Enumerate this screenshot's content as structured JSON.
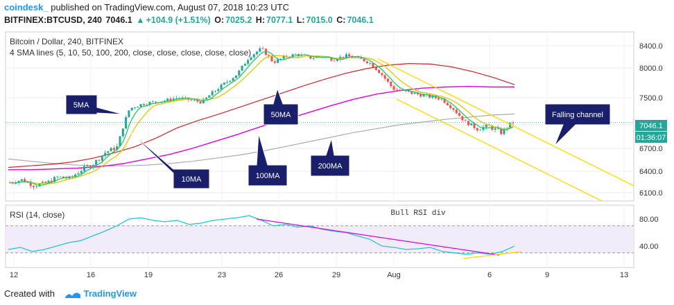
{
  "header": {
    "brand": "coindesk_",
    "published": "published on TradingView.com, August 07, 2018 10:23 UTC",
    "symbol": "BITFINEX:BTCUSD, 240",
    "last": "7046.1",
    "change": "+104.9 (+1.51%)",
    "o_label": "O:",
    "o": "7025.2",
    "h_label": "H:",
    "h": "7077.1",
    "l_label": "L:",
    "l": "7015.0",
    "c_label": "C:",
    "c": "7046.1"
  },
  "main_title": "Bitcoin / Dollar, 240, BITFINEX",
  "indicator_title": "4 SMA lines (5, 10, 50, 100, 200, close, close, close, close, close)",
  "rsi_title": "RSI (14, close)",
  "price_badge": "7046.1",
  "time_badge": "01:36:07",
  "annotations": {
    "ma5": "5MA",
    "ma10": "10MA",
    "ma50": "50MA",
    "ma100": "100MA",
    "ma200": "200MA",
    "falling": "Falling channel",
    "bull_rsi": "Bull RSI div"
  },
  "footer": {
    "created": "Created with",
    "tv": "TradingView"
  },
  "colors": {
    "up": "#26a69a",
    "down": "#ef5350",
    "sma5": "#22c55e",
    "sma10": "#e2c400",
    "sma50": "#cc2222",
    "sma100": "#dd00dd",
    "sma200": "#aaaaaa",
    "rsi": "#1fc7d4",
    "channel": "#ffd700",
    "rsi_div": "#dd00dd",
    "callout": "#1a1f6b"
  },
  "chart_data": {
    "type": "candlestick",
    "price_axis": {
      "ticks": [
        6100,
        6400,
        6700,
        7000,
        7500,
        8000,
        8400
      ],
      "labels": [
        "6100.0",
        "6400.0",
        "6700.0",
        "7000.0",
        "7500.0",
        "8000.0",
        "8400.0"
      ]
    },
    "rsi_axis": {
      "ticks": [
        40,
        80
      ],
      "labels": [
        "40.00",
        "80.00"
      ],
      "bands": [
        30,
        70
      ]
    },
    "x_axis_labels": [
      "12",
      "16",
      "19",
      "23",
      "26",
      "29",
      "Aug",
      "6",
      "9",
      "13"
    ],
    "close_path": [
      6240,
      6280,
      6200,
      6230,
      6320,
      6300,
      6420,
      6500,
      6650,
      6720,
      7300,
      7380,
      7420,
      7450,
      7500,
      7460,
      7420,
      7600,
      7750,
      7900,
      8200,
      8350,
      8100,
      8200,
      8250,
      8180,
      8210,
      8150,
      8220,
      8180,
      8100,
      7900,
      7650,
      7600,
      7560,
      7520,
      7480,
      7300,
      7050,
      6950,
      6980,
      6900,
      7046
    ],
    "sma50_path": [
      6450,
      6470,
      6490,
      6520,
      6570,
      6640,
      6720,
      6830,
      6960,
      7080,
      7200,
      7330,
      7460,
      7580,
      7700,
      7810,
      7910,
      7990,
      8050,
      8080,
      8070,
      8020,
      7940,
      7840,
      7720
    ],
    "sma100_path": [
      6420,
      6420,
      6430,
      6440,
      6460,
      6500,
      6560,
      6620,
      6700,
      6790,
      6880,
      6980,
      7090,
      7220,
      7350,
      7470,
      7560,
      7620,
      7660,
      7680,
      7690,
      7680,
      7680
    ],
    "sma200_path": [
      6560,
      6530,
      6500,
      6480,
      6470,
      6470,
      6480,
      6500,
      6530,
      6570,
      6610,
      6660,
      6720,
      6780,
      6840,
      6900,
      6950,
      7000,
      7050,
      7100,
      7140,
      7180,
      7200
    ],
    "rsi_path": [
      35,
      38,
      32,
      35,
      40,
      45,
      48,
      55,
      62,
      70,
      80,
      82,
      78,
      76,
      78,
      72,
      74,
      78,
      80,
      82,
      85,
      78,
      70,
      72,
      68,
      70,
      65,
      62,
      60,
      55,
      50,
      40,
      38,
      35,
      36,
      38,
      32,
      30,
      28,
      30,
      28,
      32,
      40
    ]
  }
}
